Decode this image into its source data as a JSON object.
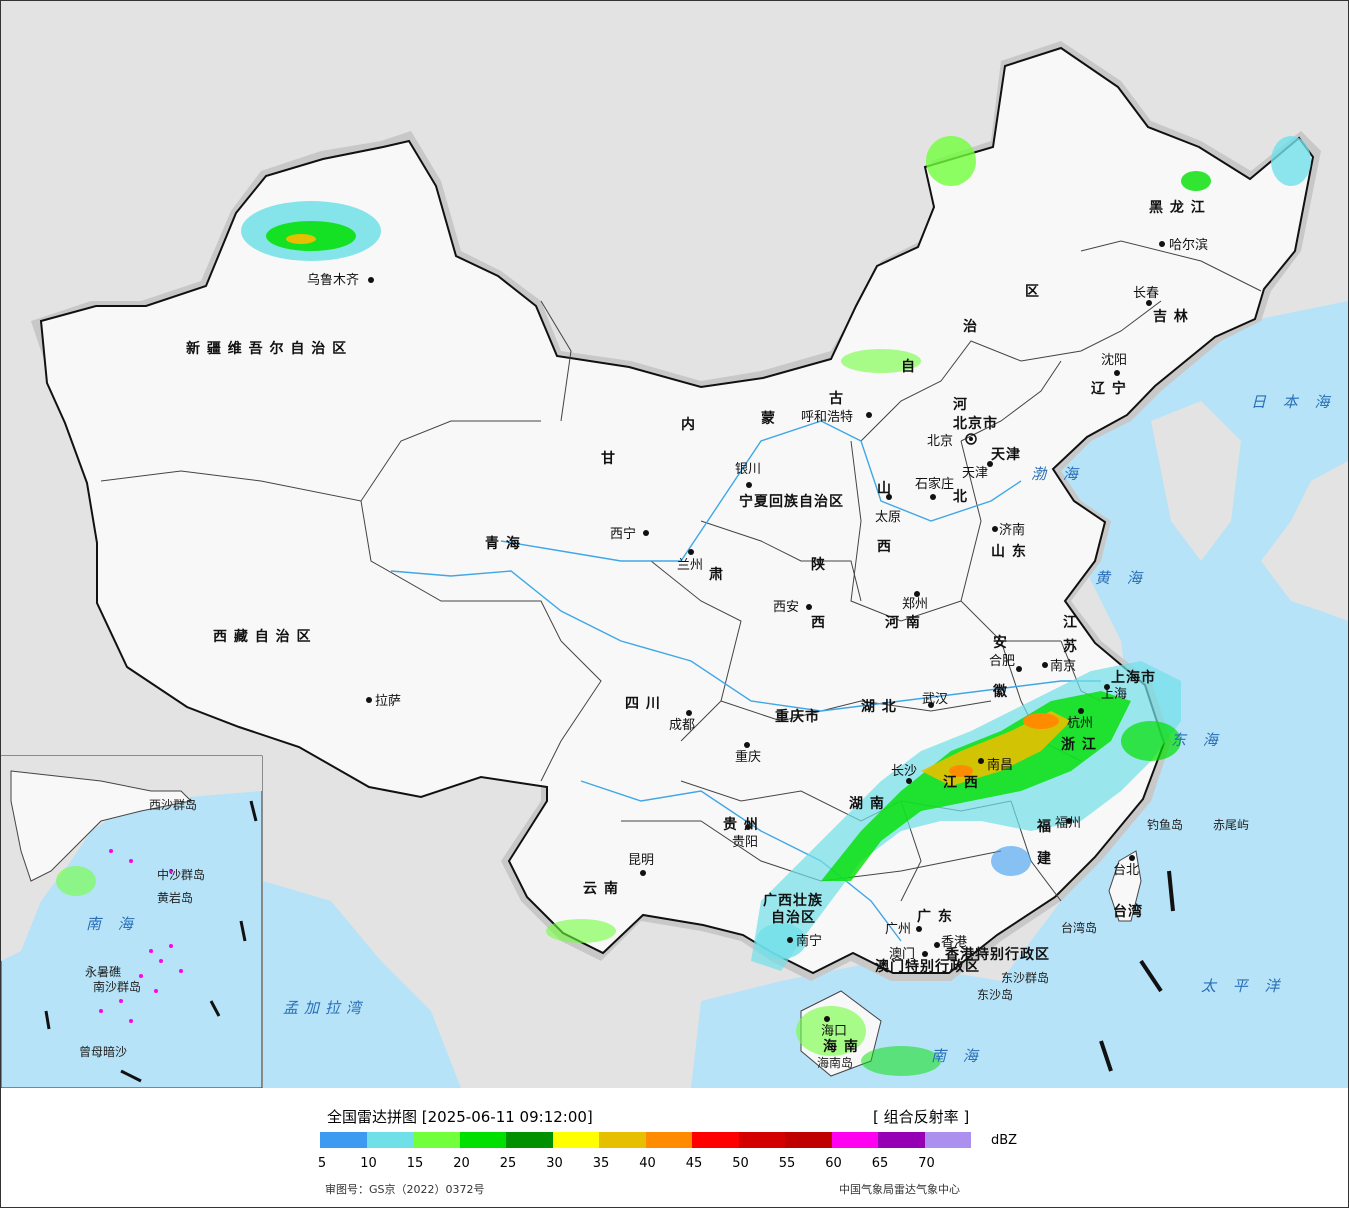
{
  "title": "全国雷达拼图 [2025-06-11 09:12:00]",
  "product": "[ 组合反射率 ]",
  "unit": "dBZ",
  "approval_no": "审图号：GS京（2022）0372号",
  "credit": "中国气象局雷达气象中心",
  "legend": {
    "colors": [
      "#3c9bf0",
      "#70e0e8",
      "#72ff3c",
      "#00e000",
      "#009000",
      "#ffff00",
      "#e6c000",
      "#ff8c00",
      "#ff0000",
      "#d40000",
      "#c00000",
      "#ff00f0",
      "#9600b4",
      "#ac90f0"
    ],
    "ticks": [
      "5",
      "10",
      "15",
      "20",
      "25",
      "30",
      "35",
      "40",
      "45",
      "50",
      "55",
      "60",
      "65",
      "70"
    ]
  },
  "provinces": [
    {
      "name": "新 疆 维 吾 尔 自 治 区"
    },
    {
      "name": "西 藏 自 治 区"
    },
    {
      "name": "青    海"
    },
    {
      "name": "甘"
    },
    {
      "name": "肃"
    },
    {
      "name": "四    川"
    },
    {
      "name": "云  南"
    },
    {
      "name": "贵  州"
    },
    {
      "name": "广西壮族"
    },
    {
      "name": "自治区"
    },
    {
      "name": "广  东"
    },
    {
      "name": "湖  南"
    },
    {
      "name": "江  西"
    },
    {
      "name": "福"
    },
    {
      "name": "建"
    },
    {
      "name": "浙  江"
    },
    {
      "name": "安"
    },
    {
      "name": "徽"
    },
    {
      "name": "江"
    },
    {
      "name": "苏"
    },
    {
      "name": "山  东"
    },
    {
      "name": "河  南"
    },
    {
      "name": "湖  北"
    },
    {
      "name": "陕"
    },
    {
      "name": "西"
    },
    {
      "name": "山"
    },
    {
      "name": "西"
    },
    {
      "name": "河"
    },
    {
      "name": "北"
    },
    {
      "name": "内"
    },
    {
      "name": "蒙"
    },
    {
      "name": "古"
    },
    {
      "name": "自"
    },
    {
      "name": "治"
    },
    {
      "name": "区"
    },
    {
      "name": "黑  龙  江"
    },
    {
      "name": "吉  林"
    },
    {
      "name": "辽  宁"
    },
    {
      "name": "重庆市"
    },
    {
      "name": "上海市"
    },
    {
      "name": "台湾"
    },
    {
      "name": "海  南"
    },
    {
      "name": "天津"
    },
    {
      "name": "北京市"
    },
    {
      "name": "宁夏回族自治区"
    },
    {
      "name": "香港特别行政区"
    },
    {
      "name": "澳门特别行政区"
    }
  ],
  "cities": [
    {
      "name": "乌鲁木齐"
    },
    {
      "name": "拉萨"
    },
    {
      "name": "西宁"
    },
    {
      "name": "兰州"
    },
    {
      "name": "银川"
    },
    {
      "name": "成都"
    },
    {
      "name": "重庆"
    },
    {
      "name": "昆明"
    },
    {
      "name": "贵阳"
    },
    {
      "name": "南宁"
    },
    {
      "name": "广州"
    },
    {
      "name": "澳门"
    },
    {
      "name": "香港"
    },
    {
      "name": "海口"
    },
    {
      "name": "长沙"
    },
    {
      "name": "南昌"
    },
    {
      "name": "福州"
    },
    {
      "name": "台北"
    },
    {
      "name": "杭州"
    },
    {
      "name": "上海"
    },
    {
      "name": "南京"
    },
    {
      "name": "合肥"
    },
    {
      "name": "武汉"
    },
    {
      "name": "郑州"
    },
    {
      "name": "西安"
    },
    {
      "name": "太原"
    },
    {
      "name": "石家庄"
    },
    {
      "name": "北京"
    },
    {
      "name": "天津"
    },
    {
      "name": "济南"
    },
    {
      "name": "呼和浩特"
    },
    {
      "name": "沈阳"
    },
    {
      "name": "长春"
    },
    {
      "name": "哈尔滨"
    }
  ],
  "seas": [
    {
      "name": "日 本 海"
    },
    {
      "name": "渤 海"
    },
    {
      "name": "黄 海"
    },
    {
      "name": "东 海"
    },
    {
      "name": "太 平 洋"
    },
    {
      "name": "南    海"
    },
    {
      "name": "孟加拉湾"
    },
    {
      "name": "南 海"
    }
  ],
  "islands": [
    {
      "name": "钓鱼岛"
    },
    {
      "name": "赤尾屿"
    },
    {
      "name": "台湾岛"
    },
    {
      "name": "东沙群岛"
    },
    {
      "name": "东沙岛"
    },
    {
      "name": "海南岛"
    },
    {
      "name": "西沙群岛"
    },
    {
      "name": "中沙群岛"
    },
    {
      "name": "黄岩岛"
    },
    {
      "name": "南沙群岛"
    },
    {
      "name": "曾母暗沙"
    },
    {
      "name": "永暑礁"
    }
  ]
}
